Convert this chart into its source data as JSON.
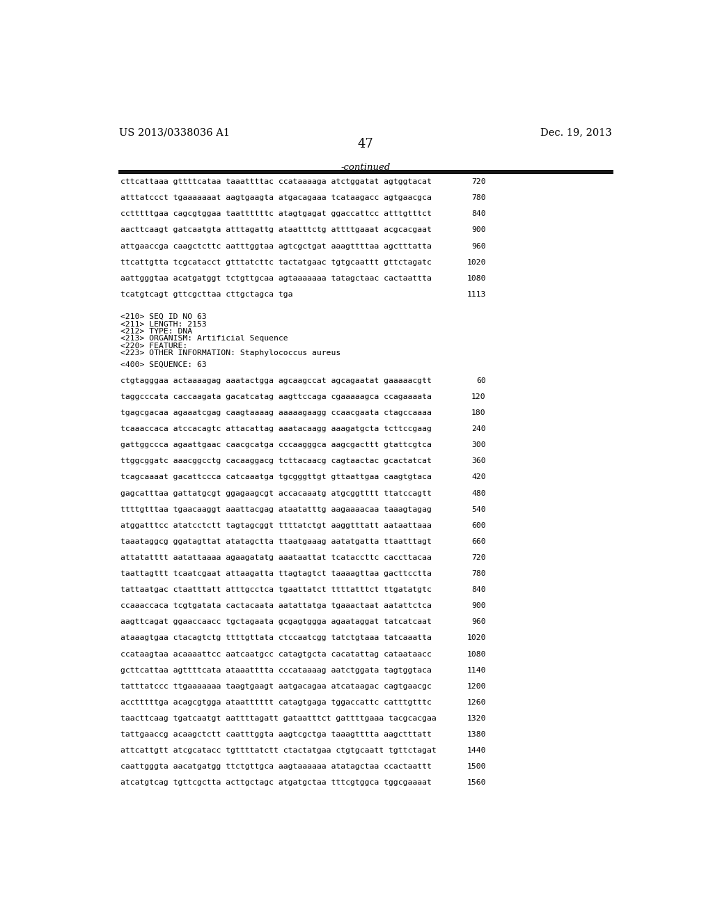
{
  "patent_number": "US 2013/0338036 A1",
  "date": "Dec. 19, 2013",
  "page_number": "47",
  "continued_label": "-continued",
  "background_color": "#ffffff",
  "text_color": "#000000",
  "sequence_lines_top": [
    [
      "cttcattaaa gttttcataa taaattttac ccataaaaga atctggatat agtggtacat",
      "720"
    ],
    [
      "atttatccct tgaaaaaaat aagtgaagta atgacagaaa tcataagacc agtgaacgca",
      "780"
    ],
    [
      "cctttttgaa cagcgtggaa taattttttc atagtgagat ggaccattcc atttgtttct",
      "840"
    ],
    [
      "aacttcaagt gatcaatgta atttagattg ataatttctg attttgaaat acgcacgaat",
      "900"
    ],
    [
      "attgaaccga caagctcttc aatttggtaa agtcgctgat aaagttttaa agctttatta",
      "960"
    ],
    [
      "ttcattgtta tcgcatacct gtttatcttc tactatgaac tgtgcaattt gttctagatc",
      "1020"
    ],
    [
      "aattgggtaa acatgatggt tctgttgcaa agtaaaaaaa tatagctaac cactaattta",
      "1080"
    ],
    [
      "tcatgtcagt gttcgcttaa cttgctagca tga",
      "1113"
    ]
  ],
  "metadata_lines": [
    "<210> SEQ ID NO 63",
    "<211> LENGTH: 2153",
    "<212> TYPE: DNA",
    "<213> ORGANISM: Artificial Sequence",
    "<220> FEATURE:",
    "<223> OTHER INFORMATION: Staphylococcus aureus"
  ],
  "sequence_label": "<400> SEQUENCE: 63",
  "sequence_lines_bottom": [
    [
      "ctgtagggaa actaaaagag aaatactgga agcaagccat agcagaatat gaaaaacgtt",
      "60"
    ],
    [
      "taggcccata caccaagata gacatcatag aagttccaga cgaaaaagca ccagaaaata",
      "120"
    ],
    [
      "tgagcgacaa agaaatcgag caagtaaaag aaaaagaagg ccaacgaata ctagccaaaa",
      "180"
    ],
    [
      "tcaaaccaca atccacagtc attacattag aaatacaagg aaagatgcta tcttccgaag",
      "240"
    ],
    [
      "gattggccca agaattgaac caacgcatga cccaagggca aagcgacttt gtattcgtca",
      "300"
    ],
    [
      "ttggcggatc aaacggcctg cacaaggacg tcttacaacg cagtaactac gcactatcat",
      "360"
    ],
    [
      "tcagcaaaat gacattccca catcaaatga tgcgggttgt gttaattgaa caagtgtaca",
      "420"
    ],
    [
      "gagcatttaa gattatgcgt ggagaagcgt accacaaatg atgcggtttt ttatccagtt",
      "480"
    ],
    [
      "ttttgtttaa tgaacaaggt aaattacgag ataatatttg aagaaaacaa taaagtagag",
      "540"
    ],
    [
      "atggatttcc atatcctctt tagtagcggt ttttatctgt aaggtttatt aataattaaa",
      "600"
    ],
    [
      "taaataggcg ggatagttat atatagctta ttaatgaaag aatatgatta ttaatttagt",
      "660"
    ],
    [
      "attatatttt aatattaaaa agaagatatg aaataattat tcataccttc caccttacaa",
      "720"
    ],
    [
      "taattagttt tcaatcgaat attaagatta ttagtagtct taaaagttaa gacttcctta",
      "780"
    ],
    [
      "tattaatgac ctaatttatt atttgcctca tgaattatct ttttatttct ttgatatgtc",
      "840"
    ],
    [
      "ccaaaccaca tcgtgatata cactacaata aatattatga tgaaactaat aatattctca",
      "900"
    ],
    [
      "aagttcagat ggaaccaacc tgctagaata gcgagtggga agaataggat tatcatcaat",
      "960"
    ],
    [
      "ataaagtgaa ctacagtctg ttttgttata ctccaatcgg tatctgtaaa tatcaaatta",
      "1020"
    ],
    [
      "ccataagtaa acaaaattcc aatcaatgcc catagtgcta cacatattag cataataacc",
      "1080"
    ],
    [
      "gcttcattaa agttttcata ataaatttta cccataaaag aatctggata tagtggtaca",
      "1140"
    ],
    [
      "tatttatccc ttgaaaaaaa taagtgaagt aatgacagaa atcataagac cagtgaacgc",
      "1200"
    ],
    [
      "acctttttga acagcgtgga ataatttttt catagtgaga tggaccattc catttgtttc",
      "1260"
    ],
    [
      "taacttcaag tgatcaatgt aattttagatt gataatttct gattttgaaa tacgcacgaa",
      "1320"
    ],
    [
      "tattgaaccg acaagctctt caatttggta aagtcgctga taaagtttta aagctttatt",
      "1380"
    ],
    [
      "attcattgtt atcgcatacc tgttttatctt ctactatgaa ctgtgcaatt tgttctagat",
      "1440"
    ],
    [
      "caattgggta aacatgatgg ttctgttgca aagtaaaaaa atatagctaa ccactaattt",
      "1500"
    ],
    [
      "atcatgtcag tgttcgctta acttgctagc atgatgctaa tttcgtggca tggcgaaaat",
      "1560"
    ]
  ]
}
